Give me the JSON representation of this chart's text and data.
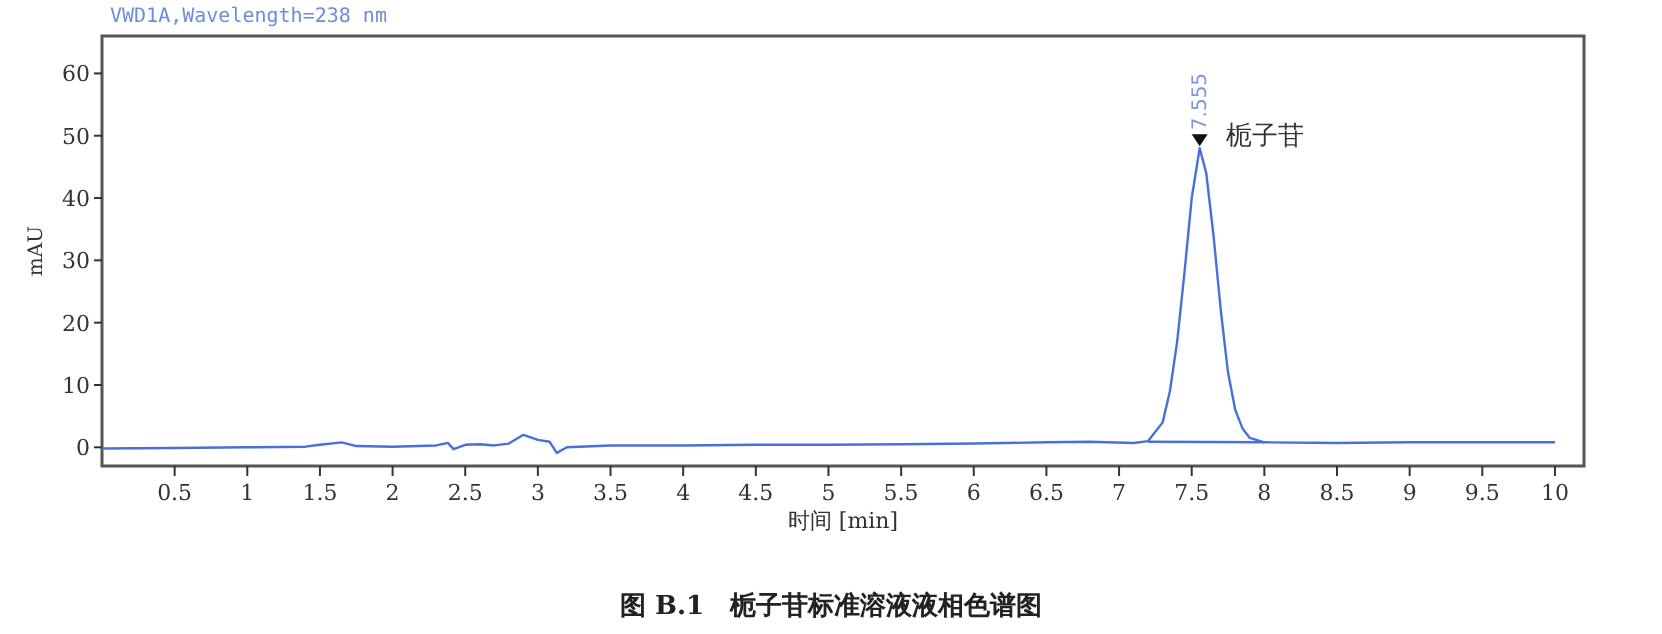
{
  "chart_data": {
    "type": "line",
    "title": "图 B.1　栀子苷标准溶液液相色谱图",
    "subtitle": "VWD1A,Wavelength=238 nm",
    "xlabel": "时间 [min]",
    "ylabel": "mAU",
    "xlim": [
      0,
      10.2
    ],
    "ylim": [
      -3,
      66
    ],
    "xticks": [
      {
        "value": 0.5,
        "label": "0.5"
      },
      1,
      {
        "value": 1.5,
        "label": "1.5"
      },
      2,
      {
        "value": 2.5,
        "label": "2.5"
      },
      3,
      {
        "value": 3.5,
        "label": "3.5"
      },
      4,
      {
        "value": 4.5,
        "label": "4.5"
      },
      5,
      {
        "value": 5.5,
        "label": "5.5"
      },
      6,
      {
        "value": 6.5,
        "label": "6.5"
      },
      7,
      {
        "value": 7.5,
        "label": "7.5"
      },
      8,
      {
        "value": 8.5,
        "label": "8.5"
      },
      9,
      {
        "value": 9.5,
        "label": "9.5"
      },
      10
    ],
    "yticks": [
      0,
      10,
      20,
      30,
      40,
      50,
      60
    ],
    "grid": false,
    "line_style": "solid",
    "marker": "none",
    "series": [
      {
        "color": "#4a6fd8",
        "x": [
          0,
          0.5,
          1,
          1.4,
          1.5,
          1.65,
          1.75,
          2,
          2.3,
          2.38,
          2.42,
          2.5,
          2.6,
          2.7,
          2.8,
          2.9,
          3,
          3.08,
          3.13,
          3.2,
          3.5,
          4,
          4.5,
          5,
          5.5,
          6,
          6.5,
          6.8,
          7.1,
          7.2,
          7.3,
          7.35,
          7.4,
          7.45,
          7.5,
          7.555,
          7.6,
          7.65,
          7.7,
          7.75,
          7.8,
          7.85,
          7.9,
          8,
          8.5,
          9,
          9.5,
          10
        ],
        "values": [
          -0.2,
          -0.1,
          0,
          0.1,
          0.4,
          0.8,
          0.2,
          0.1,
          0.3,
          0.7,
          -0.3,
          0.4,
          0.5,
          0.3,
          0.6,
          2,
          1.2,
          0.9,
          -0.9,
          0,
          0.3,
          0.3,
          0.4,
          0.4,
          0.5,
          0.6,
          0.8,
          0.9,
          0.7,
          1,
          4,
          9,
          17,
          28,
          40,
          48,
          44,
          34,
          22,
          12,
          6,
          3,
          1.5,
          0.8,
          0.7,
          0.8,
          0.8,
          0.8
        ]
      },
      {
        "color": "#4a6fd8",
        "x": [
          7.2,
          8.0
        ],
        "values": [
          0.9,
          0.8
        ]
      }
    ],
    "annotations": [
      {
        "text": "7.555",
        "x": 7.555,
        "y": 48
      },
      {
        "text": "栀子苷",
        "x": 7.555,
        "y": 48
      }
    ]
  }
}
